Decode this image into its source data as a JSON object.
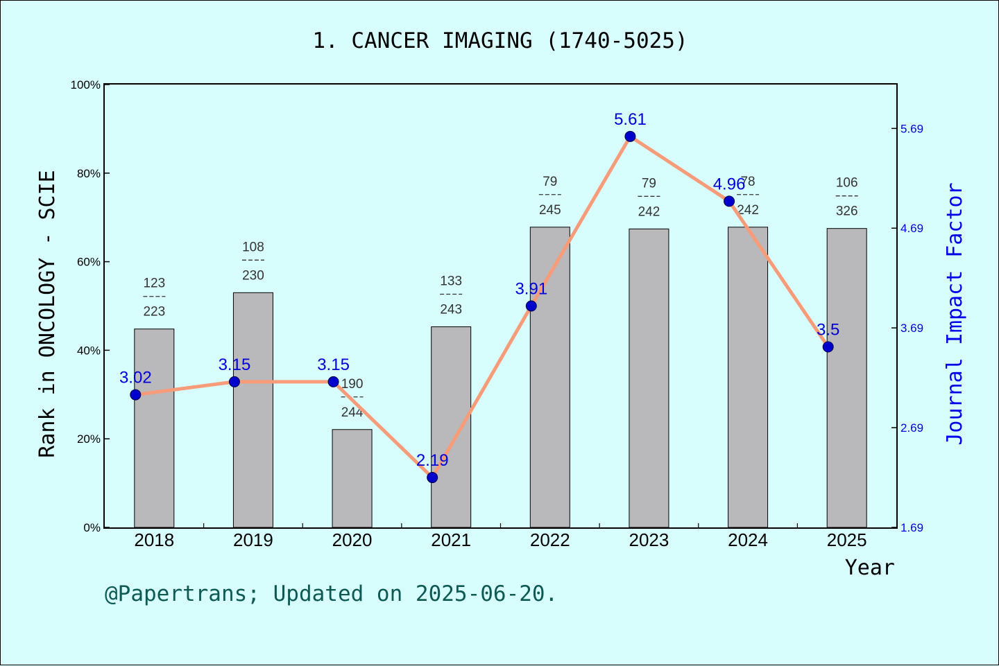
{
  "chart_data": {
    "type": "bar",
    "title": "1. CANCER IMAGING (1740-5025)",
    "xlabel": "Year",
    "ylabel": "Rank in ONCOLOGY - SCIE",
    "y2label": "Journal Impact Factor",
    "categories": [
      "2018",
      "2019",
      "2020",
      "2021",
      "2022",
      "2023",
      "2024",
      "2025"
    ],
    "ylim": [
      0,
      100
    ],
    "yticks": [
      "0%",
      "20%",
      "40%",
      "60%",
      "80%",
      "100%"
    ],
    "y2lim": [
      1.69,
      6.13
    ],
    "y2ticks": [
      "1.69",
      "2.69",
      "3.69",
      "4.69",
      "5.69"
    ],
    "series": [
      {
        "name": "Rank",
        "type": "bar",
        "color": "#b9b9bb",
        "values": [
          44.8,
          53.0,
          22.1,
          45.3,
          67.8,
          67.4,
          67.8,
          67.5
        ],
        "rank": [
          "123",
          "108",
          "190",
          "133",
          "79",
          "79",
          "78",
          "106"
        ],
        "total": [
          "223",
          "230",
          "244",
          "243",
          "245",
          "242",
          "242",
          "326"
        ]
      },
      {
        "name": "Impact Factor",
        "type": "line",
        "color": "#f79b78",
        "marker_color": "#0000cc",
        "values": [
          3.02,
          3.15,
          3.15,
          2.19,
          3.91,
          5.61,
          4.96,
          3.5
        ],
        "labels": [
          "3.02",
          "3.15",
          "3.15",
          "2.19",
          "3.91",
          "5.61",
          "4.96",
          "3.5"
        ]
      }
    ],
    "grid": false
  },
  "footer": "@Papertrans; Updated on 2025-06-20."
}
